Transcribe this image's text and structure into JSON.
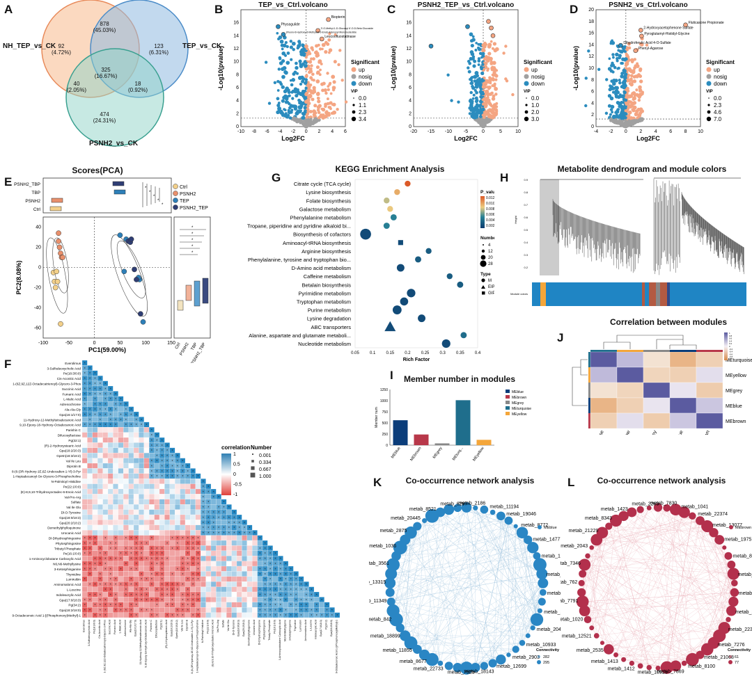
{
  "panels": {
    "A": {
      "label": "A",
      "sets": [
        "NH_TEP_vs_CK",
        "TEP_vs_CK",
        "PSNH2_vs_CK"
      ],
      "regions": [
        {
          "count": "92",
          "pct": "(4.72%)"
        },
        {
          "count": "878",
          "pct": "(45.03%)"
        },
        {
          "count": "123",
          "pct": "(6.31%)"
        },
        {
          "count": "325",
          "pct": "(16.67%)"
        },
        {
          "count": "40",
          "pct": "(2.05%)"
        },
        {
          "count": "18",
          "pct": "(0.92%)"
        },
        {
          "count": "474",
          "pct": "(24.31%)"
        }
      ]
    },
    "B": {
      "label": "B",
      "title": "TEP_vs_Ctrl.volcano",
      "xlabel": "Log2FC",
      "ylabel": "-Log10(pvalue)",
      "xticks": [
        "-10",
        "-8",
        "-6",
        "-4",
        "-2",
        "0",
        "2",
        "4",
        "6"
      ],
      "yticks": [
        "0",
        "2",
        "4",
        "6",
        "8",
        "10",
        "12",
        "14",
        "16"
      ],
      "annotations": [
        "Biopterin",
        "Physagulide",
        "3'-O-Methyl-1-D-Glucosyl 6'-O-D-Beta Glucoside",
        "Leucoofluostatinase",
        "(Fluoro-6-Hydroxy-5-Methyloct-3-Enal)-Adenosyl Mononucleotide"
      ],
      "vip": [
        "0.0",
        "1.1",
        "2.3",
        "3.4"
      ]
    },
    "C": {
      "label": "C",
      "title": "PSNH2_TEP_vs_Ctrl.volcano",
      "xlabel": "Log2FC",
      "ylabel": "-Log10(pvalue)",
      "xticks": [
        "-20",
        "-15",
        "-10",
        "-5",
        "0",
        "5",
        "10"
      ],
      "yticks": [
        "0",
        "2",
        "4",
        "6",
        "8",
        "10",
        "12",
        "14",
        "16"
      ],
      "vip": [
        "0.0",
        "1.0",
        "2.0",
        "3.0"
      ]
    },
    "D": {
      "label": "D",
      "title": "PSNH2_vs_Ctrl.volcano",
      "xlabel": "Log2FC",
      "ylabel": "-Log10(pvalue)",
      "xticks": [
        "-4",
        "-2",
        "0",
        "2",
        "4",
        "6",
        "8",
        "10"
      ],
      "yticks": [
        "0",
        "2",
        "4",
        "6",
        "8",
        "10",
        "12",
        "14",
        "16",
        "18",
        "20"
      ],
      "annotations": [
        "Fluticasone Propionate",
        "2-Hydroxyacetophenone Sulfate",
        "Pyroglutamyl-Histidyl-Glycine",
        "Dihydroferulic Acid 4-O-Sulfate",
        "Phenyl-Agarose"
      ],
      "vip": [
        "0.0",
        "2.3",
        "4.6",
        "7.0"
      ]
    },
    "volcano_legend": {
      "title": "Significant",
      "items": [
        "up",
        "nosig",
        "down"
      ],
      "vip_title": "VIP"
    },
    "E": {
      "label": "E",
      "title": "Scores(PCA)",
      "xlabel": "PC1(59.00%)",
      "ylabel": "PC2(8.08%)",
      "groups": [
        "Ctrl",
        "PSNH2",
        "TEP",
        "PSNH2_TEP"
      ],
      "top_groups": [
        "PSNH2_TBP",
        "TBP",
        "PSNH2",
        "Ctrl"
      ],
      "right_groups": [
        "Ctrl",
        "PSNH2",
        "TBP",
        "PSNH2_TBP"
      ],
      "xticks": [
        "-100",
        "-50",
        "0",
        "50",
        "100",
        "150"
      ],
      "yticks": [
        "40",
        "20",
        "0",
        "-20",
        "-40",
        "-60"
      ]
    },
    "F": {
      "label": "F",
      "legend_corr": "correlation",
      "legend_num": "Number",
      "corr_ticks": [
        "1",
        "0.5",
        "0",
        "-0.5",
        "-1"
      ],
      "num_ticks": [
        "0.001",
        "0.334",
        "0.667",
        "1.000"
      ],
      "metabolites": [
        "Everolimus",
        "3-Sulfodeoxycholic Acid",
        "Pe(18:3/0:0)",
        "Cis-Aconitic Acid",
        "1-(6Z,9Z,12Z-Octadecatrienoyl)-Glycero-3-Phos",
        "Succinic Acid",
        "Fumaric Acid",
        "L-Malic Acid",
        "Adrenochrome",
        "Ala-Ala-Gly",
        "Gpa(16:1/17:0)",
        "11-Hydroxy-12-Methyltetradecanoic Acid",
        "9,10-Epoxy-18-Hydroxy-Octadecanoic Acid",
        "Parishin C",
        "Difucosyllactose",
        "Pg(32:1)",
        "(R)-2-Hydroxystearic Acid",
        "Gpa(18:2/20:3)",
        "Gpetn(18:3/18:2)",
        "Val Ile Leu",
        "Diprotin B",
        "8-(6-(3R-Hydroxy-1E,6Z-Undecadien-1-Yl)-3-Pyr",
        "1-Heptadecanoyl-Sn-Glycero-3-Phosphocholine",
        "N-Palmitoyl Histidine",
        "Pe(22:1/0:0)",
        "(E)-8,9,10-Trihydroxyoctadec-6-Enoic Acid",
        "Val-Pro-Arg",
        "Sulfate",
        "Val Ile Glu",
        "Dl-O-Tyrosine",
        "Gpa(18:0/18:3)",
        "Gpa(20:2/18:2)",
        "Demethylphylloquinone",
        "Urocanic Acid",
        "Dl-Dihydrosphingosine",
        "Phytosphingosine",
        "Tributyl Phosphate",
        "Pe(16:1/0:0)",
        "1-Aminocyclobutane Carboxylic Acid",
        "N6,N6-Methyllysine",
        "3-Ketosphinganine",
        "Thymidine",
        "Lumiruibin",
        "Aminomalonic Acid",
        "L-Leucine",
        "Indoleacrylic Acid",
        "Gpa(17:0/18:3)",
        "Pg(34:2)",
        "Gpa(18:2/18:0)",
        "9-Octadecenoic Acid 1-[(Phosphonoxy)Methyl]-1"
      ]
    },
    "G": {
      "label": "G",
      "title": "KEGG Enrichment Analysis",
      "xlabel": "Rich Factor",
      "xticks": [
        "0.05",
        "0.1",
        "0.15",
        "0.2",
        "0.25",
        "0.3",
        "0.35",
        "0.4"
      ],
      "legend_p": "P_value",
      "p_ticks": [
        "0.0120",
        "0.0100",
        "0.00800",
        "0.00600",
        "0.00400",
        "0.00200"
      ],
      "legend_number": "Number",
      "number_ticks": [
        "4",
        "12",
        "20",
        "28"
      ],
      "legend_type": "Type",
      "type_items": [
        "M",
        "EIP",
        "GIP"
      ]
    },
    "H": {
      "label": "H",
      "title": "Metabolite dendrogram and module colors",
      "ylabel": "Height",
      "module_label": "Module colors"
    },
    "I": {
      "label": "I",
      "title": "Member number in modules",
      "ylabel": "Member num",
      "yticks": [
        "0",
        "250",
        "500",
        "750",
        "1000",
        "1250"
      ],
      "legend": [
        "MEblue",
        "MEbrown",
        "MEgrey",
        "MEturquoise",
        "MEyellow"
      ]
    },
    "J": {
      "label": "J",
      "title": "Correlation between modules",
      "modules": [
        "MEturquoise",
        "MEyellow",
        "MEgrey",
        "MEblue",
        "MEbrown"
      ],
      "scale_ticks": [
        "1",
        "0.8",
        "0.6",
        "0.4",
        "0.2",
        "0",
        "-0.2",
        "-0.4",
        "-0.6",
        "-0.8",
        "-1"
      ]
    },
    "K": {
      "label": "K",
      "title": "Co-occurrence network analysis",
      "legend_module": "MEblue",
      "legend_conn": "Connectivity",
      "conn_ticks": [
        "282",
        "295"
      ],
      "nodes": [
        "metab_2186",
        "metab_11194",
        "metab_19046",
        "metab_8772",
        "metab_14777",
        "metab_12816",
        "metab_3778",
        "metab_10396",
        "metab_20581",
        "metab_20490",
        "metab_10933",
        "metab_2903",
        "metab_12699",
        "metab_18143",
        "metab_7525",
        "metab_22733",
        "metab_8677",
        "metab_11855",
        "metab_18899",
        "metab_842",
        "metab_11349",
        "metab_13315",
        "metab_3561",
        "metab_1036",
        "metab_2875",
        "metab_20445",
        "metab_8521",
        "metab_6297"
      ]
    },
    "L": {
      "label": "L",
      "title": "Co-occurrence network analysis",
      "legend_module": "MEbrown",
      "legend_conn": "Connectivity",
      "conn_ticks": [
        "61",
        "77"
      ],
      "nodes": [
        "metab_7830",
        "metab_1041",
        "metab_22374",
        "metab_13077",
        "metab_1975",
        "metab_8530",
        "metab_8323",
        "metab_1133",
        "metab_2293",
        "metab_22317",
        "metab_7276",
        "metab_21068",
        "metab_8100",
        "metab_7869",
        "metab_10915",
        "metab_1412",
        "metab_1413",
        "metab_2535",
        "metab_12521",
        "metab_1020",
        "metab_7791",
        "metab_762",
        "metab_7346",
        "metab_2043",
        "metab_21229",
        "metab_8343",
        "metab_1423",
        "metab_2263"
      ]
    }
  },
  "colors": {
    "up": "#f4a582",
    "nosig": "#a0a0a0",
    "down": "#2b8cbe",
    "venn1": "#f8b98c",
    "venn2": "#8fb9e0",
    "venn3": "#8fd3c8",
    "blue": "#0b3d7a",
    "brown": "#b8384a",
    "grey": "#888888",
    "turquoise": "#1f6e8c",
    "yellow": "#f4a63a",
    "netblue": "#2a86c4",
    "netred": "#b3304c"
  },
  "chart_data": [
    {
      "type": "bar",
      "title": "Member number in modules",
      "categories": [
        "MEblue",
        "MEbrown",
        "MEgrey",
        "MEturquoise",
        "MEyellow"
      ],
      "values": [
        560,
        240,
        40,
        1010,
        120
      ],
      "ylim": [
        0,
        1250
      ],
      "ylabel": "Member num"
    },
    {
      "type": "scatter",
      "title": "KEGG Enrichment Analysis",
      "xlabel": "Rich Factor",
      "xlim": [
        0.05,
        0.4
      ],
      "categories": [
        "Citrate cycle (TCA cycle)",
        "Lysine biosynthesis",
        "Folate biosynthesis",
        "Galactose metabolism",
        "Phenylalanine metabolism",
        "Tropane, piperidine and pyridine alkaloid bi...",
        "Biosynthesis of cofactors",
        "Aminoacyl-tRNA biosynthesis",
        "Arginine biosynthesis",
        "Phenylalanine, tyrosine and tryptophan bio...",
        "D-Amino acid metabolism",
        "Caffeine metabolism",
        "Betalain biosynthesis",
        "Pyrimidine metabolism",
        "Tryptophan metabolism",
        "Purine metabolism",
        "Lysine degradation",
        "ABC transporters",
        "Alanine, aspartate and glutamate metaboli...",
        "Nucleotide metabolism"
      ],
      "rich_factor": [
        0.2,
        0.17,
        0.14,
        0.15,
        0.16,
        0.14,
        0.08,
        0.18,
        0.26,
        0.23,
        0.18,
        0.32,
        0.35,
        0.21,
        0.19,
        0.17,
        0.24,
        0.15,
        0.36,
        0.31
      ],
      "number": [
        4,
        4,
        4,
        4,
        5,
        5,
        28,
        8,
        4,
        5,
        10,
        4,
        5,
        14,
        12,
        16,
        10,
        30,
        5,
        14
      ],
      "pvalue": [
        0.012,
        0.009,
        0.007,
        0.008,
        0.004,
        0.004,
        0.001,
        0.001,
        0.002,
        0.002,
        0.001,
        0.002,
        0.002,
        0.001,
        0.001,
        0.001,
        0.001,
        0.001,
        0.003,
        0.001
      ],
      "shape": [
        "M",
        "M",
        "M",
        "M",
        "M",
        "M",
        "M",
        "GIP",
        "M",
        "M",
        "M",
        "M",
        "M",
        "M",
        "M",
        "M",
        "M",
        "EIP",
        "M",
        "M"
      ]
    },
    {
      "type": "heatmap",
      "title": "Correlation between modules",
      "rows": [
        "MEturquoise",
        "MEyellow",
        "MEgrey",
        "MEblue",
        "MEbrown"
      ],
      "cols": [
        "MEturquoise",
        "MEyellow",
        "MEgrey",
        "MEblue",
        "MEbrown"
      ],
      "values": [
        [
          1,
          0.45,
          -0.1,
          -0.6,
          -0.3
        ],
        [
          0.45,
          1,
          -0.25,
          -0.3,
          0.15
        ],
        [
          -0.1,
          -0.25,
          1,
          0.1,
          -0.35
        ],
        [
          -0.6,
          -0.3,
          0.1,
          1,
          0.35
        ],
        [
          -0.3,
          0.15,
          -0.35,
          0.35,
          1
        ]
      ]
    }
  ]
}
